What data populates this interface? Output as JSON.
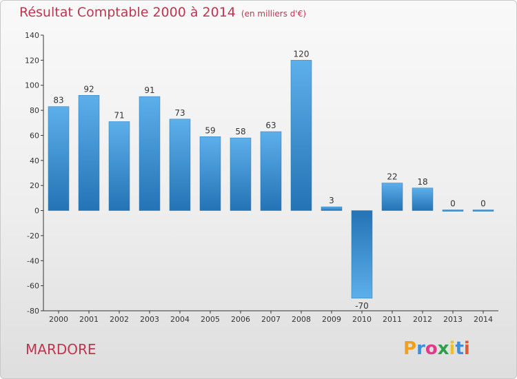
{
  "title": "Résultat Comptable 2000 à 2014",
  "unit": "(en milliers d'€)",
  "city": "MARDORE",
  "logo": {
    "text": "Proxiti",
    "letters": [
      "P",
      "r",
      "o",
      "x",
      "i",
      "t",
      "i"
    ],
    "colors": [
      "#f0a020",
      "#3c8fd8",
      "#e03a8a",
      "#2e9e4a",
      "#f0c020",
      "#3c8fd8",
      "#e05a30"
    ]
  },
  "colors": {
    "accent": "#c0344e",
    "bar_light": "#5dafea",
    "bar_dark": "#2473b5",
    "axis": "#333333"
  },
  "chart_data": {
    "type": "bar",
    "title": "Résultat Comptable 2000 à 2014",
    "ylabel": "en milliers d'€",
    "xlabel": "",
    "categories": [
      "2000",
      "2001",
      "2002",
      "2003",
      "2004",
      "2005",
      "2006",
      "2007",
      "2008",
      "2009",
      "2010",
      "2011",
      "2012",
      "2013",
      "2014"
    ],
    "values": [
      83,
      92,
      71,
      91,
      73,
      59,
      58,
      63,
      120,
      3,
      -70,
      22,
      18,
      0,
      0
    ],
    "ylim": [
      -80,
      140
    ],
    "yticks": [
      140,
      120,
      100,
      80,
      60,
      40,
      20,
      0,
      -20,
      -40,
      -60,
      -80
    ],
    "grid": false,
    "legend": "none"
  }
}
